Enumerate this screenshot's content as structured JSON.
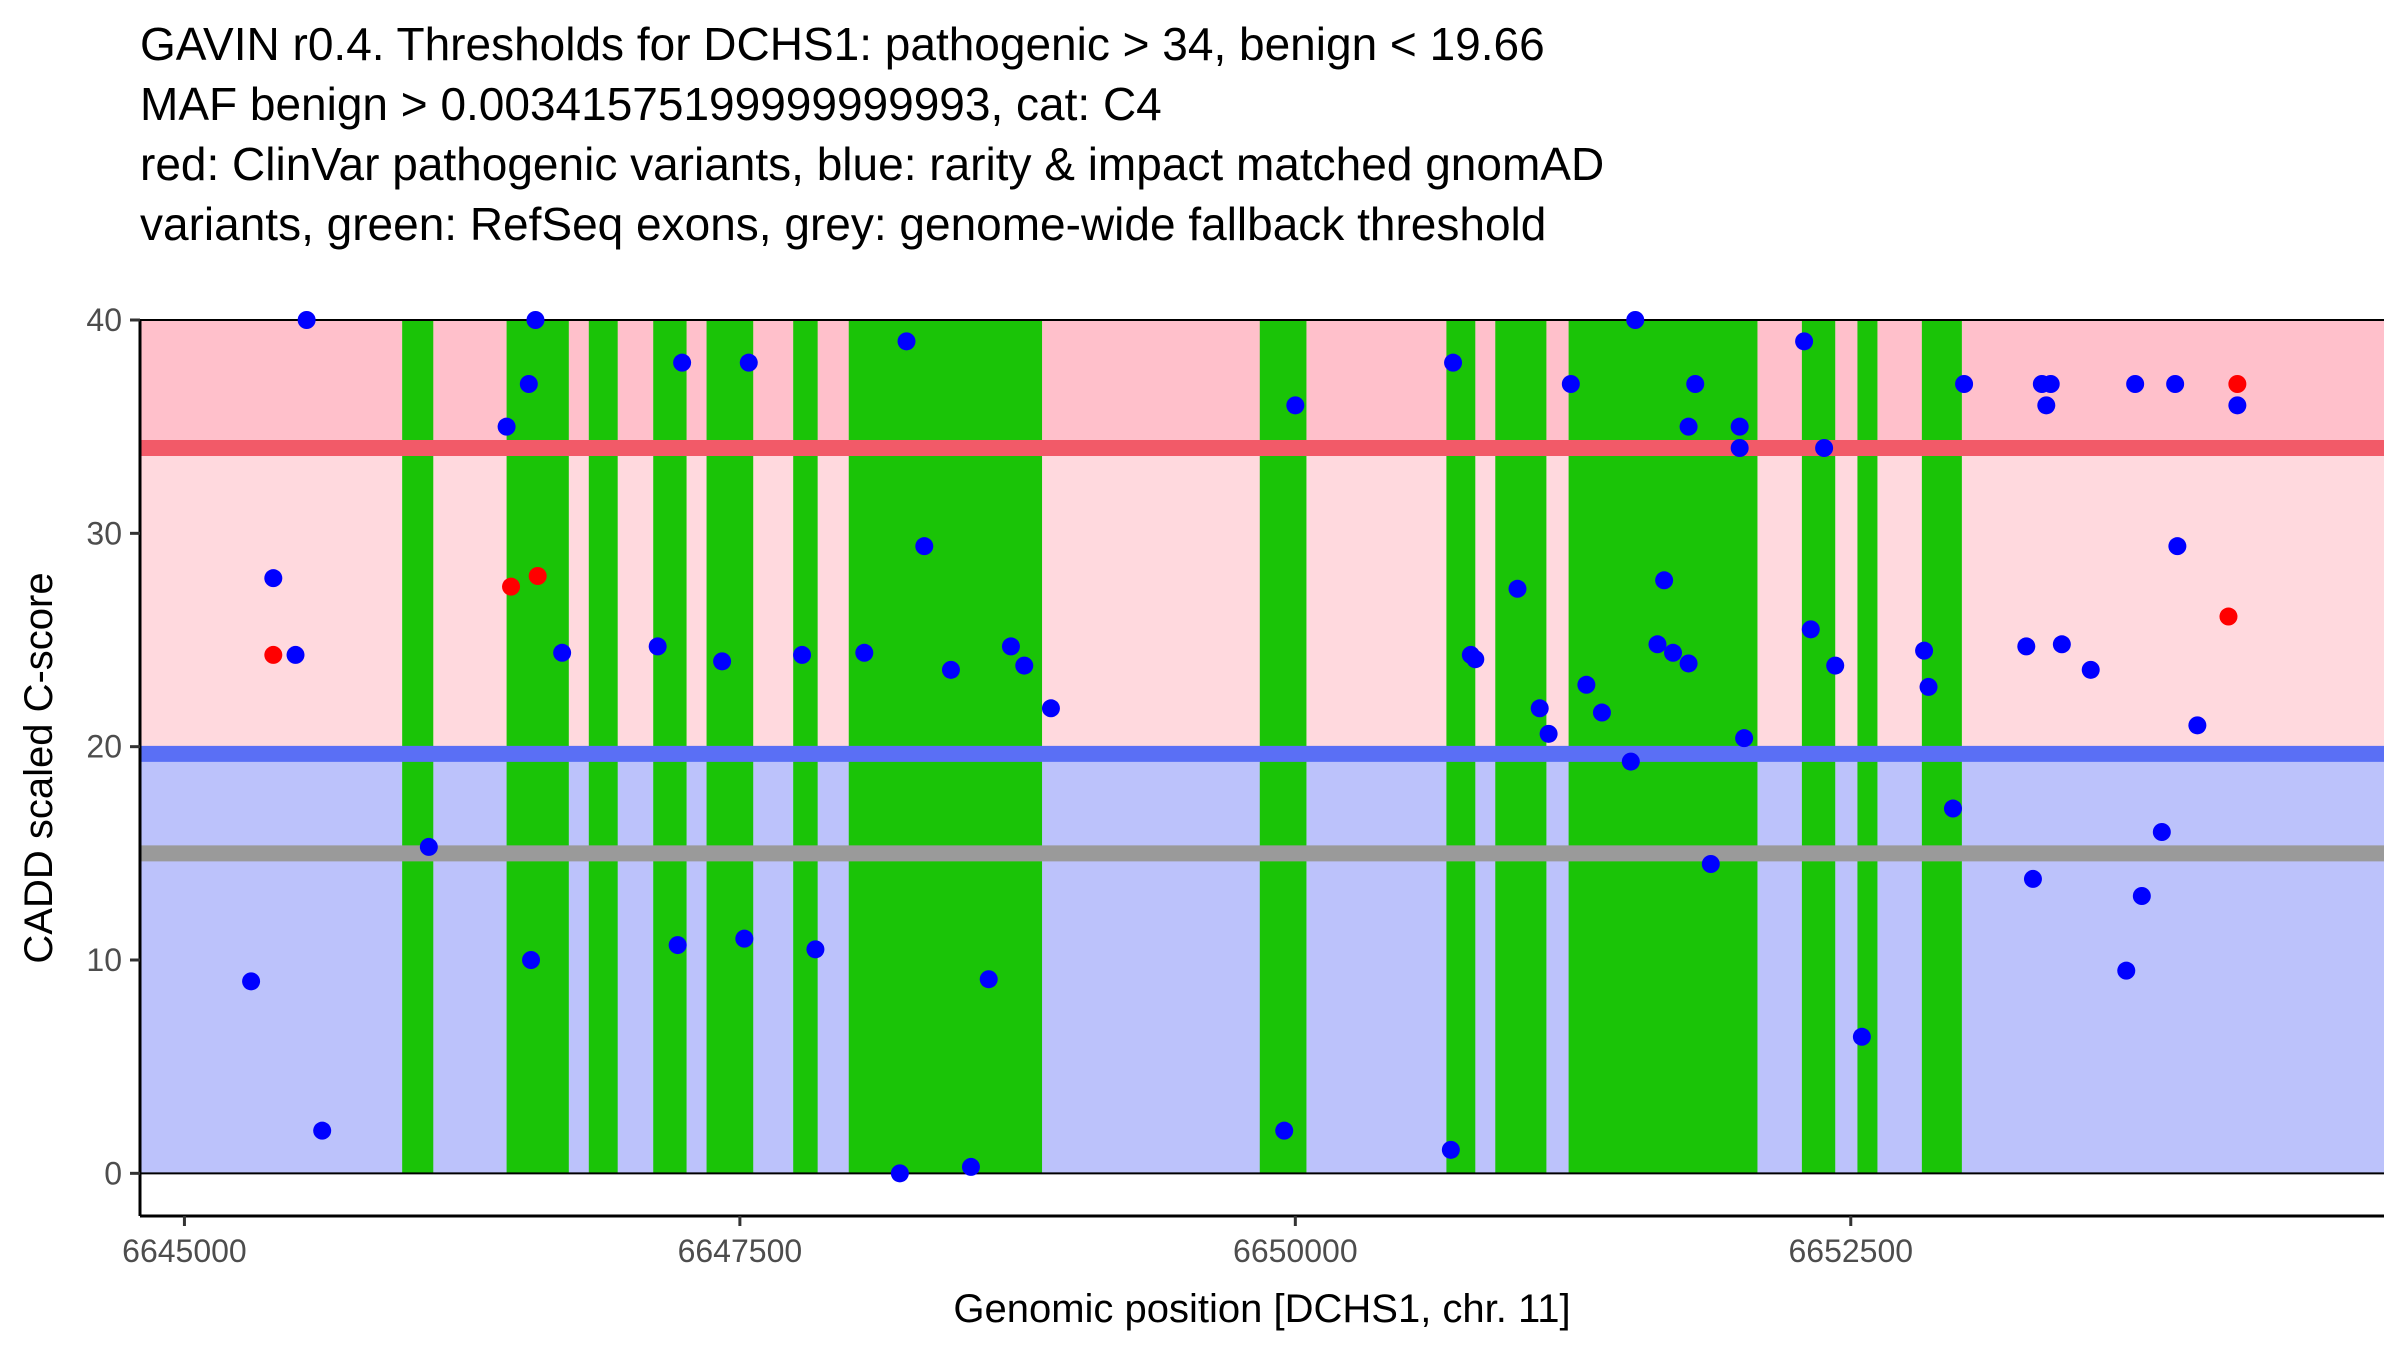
{
  "chart_data": {
    "type": "scatter",
    "title_lines": [
      "GAVIN r0.4. Thresholds for DCHS1: pathogenic > 34, benign < 19.66",
      "MAF benign > 0.00341575199999999993, cat: C4",
      "red: ClinVar pathogenic variants, blue: rarity & impact matched gnomAD",
      "variants, green: RefSeq exons, grey: genome-wide fallback threshold"
    ],
    "xlabel": "Genomic position [DCHS1, chr. 11]",
    "ylabel": "CADD scaled C-score",
    "xlim": [
      6644800,
      6654900
    ],
    "ylim": [
      -2,
      40
    ],
    "x_ticks": [
      6645000,
      6647500,
      6650000,
      6652500
    ],
    "x_tick_labels": [
      "6645000",
      "6647500",
      "6650000",
      "6652500"
    ],
    "y_ticks": [
      0,
      10,
      20,
      30,
      40
    ],
    "y_tick_labels": [
      "0",
      "10",
      "20",
      "30",
      "40"
    ],
    "thresholds": {
      "pathogenic": 34,
      "benign": 19.66,
      "fallback": 15
    },
    "colors": {
      "pathogenic_zone": "#ffc0cb",
      "between_zone": "#ffd9de",
      "benign_zone": "#bcc2fb",
      "pathogenic_line": "#f25a68",
      "benign_line": "#5a6ff5",
      "fallback_line": "#9a9a9a",
      "exon": "#1ac407",
      "clinvar_point": "#ff0000",
      "gnomad_point": "#0000ff"
    },
    "exons": [
      [
        6645980,
        6646120
      ],
      [
        6646450,
        6646730
      ],
      [
        6646820,
        6646950
      ],
      [
        6647110,
        6647260
      ],
      [
        6647350,
        6647560
      ],
      [
        6647740,
        6647850
      ],
      [
        6647990,
        6648860
      ],
      [
        6649840,
        6650050
      ],
      [
        6650680,
        6650810
      ],
      [
        6650900,
        6651130
      ],
      [
        6651230,
        6652080
      ],
      [
        6652280,
        6652430
      ],
      [
        6652530,
        6652620
      ],
      [
        6652820,
        6653000
      ]
    ],
    "series": [
      {
        "name": "ClinVar pathogenic",
        "points": [
          [
            6645400,
            24.3
          ],
          [
            6646470,
            27.5
          ],
          [
            6646590,
            28.0
          ],
          [
            6654200,
            26.1
          ],
          [
            6654240,
            37.0
          ]
        ]
      },
      {
        "name": "gnomAD matched",
        "points": [
          [
            6645300,
            9.0
          ],
          [
            6645400,
            27.9
          ],
          [
            6645500,
            24.3
          ],
          [
            6645550,
            40.0
          ],
          [
            6645620,
            2.0
          ],
          [
            6646100,
            15.3
          ],
          [
            6646450,
            35.0
          ],
          [
            6646550,
            37.0
          ],
          [
            6646560,
            10.0
          ],
          [
            6646580,
            40.0
          ],
          [
            6646700,
            24.4
          ],
          [
            6647130,
            24.7
          ],
          [
            6647220,
            10.7
          ],
          [
            6647240,
            38.0
          ],
          [
            6647420,
            24.0
          ],
          [
            6647520,
            11.0
          ],
          [
            6647540,
            38.0
          ],
          [
            6647780,
            24.3
          ],
          [
            6647840,
            10.5
          ],
          [
            6648060,
            24.4
          ],
          [
            6648220,
            0.0
          ],
          [
            6648250,
            39.0
          ],
          [
            6648330,
            29.4
          ],
          [
            6648450,
            23.6
          ],
          [
            6648540,
            0.3
          ],
          [
            6648620,
            9.1
          ],
          [
            6648720,
            24.7
          ],
          [
            6648780,
            23.8
          ],
          [
            6648900,
            21.8
          ],
          [
            6649950,
            2.0
          ],
          [
            6650000,
            36.0
          ],
          [
            6650700,
            1.1
          ],
          [
            6650710,
            38.0
          ],
          [
            6650790,
            24.3
          ],
          [
            6650810,
            24.1
          ],
          [
            6651000,
            27.4
          ],
          [
            6651100,
            21.8
          ],
          [
            6651140,
            20.6
          ],
          [
            6651240,
            37.0
          ],
          [
            6651310,
            22.9
          ],
          [
            6651380,
            21.6
          ],
          [
            6651510,
            19.3
          ],
          [
            6651530,
            40.0
          ],
          [
            6651630,
            24.8
          ],
          [
            6651660,
            27.8
          ],
          [
            6651700,
            24.4
          ],
          [
            6651770,
            35.0
          ],
          [
            6651770,
            23.9
          ],
          [
            6651800,
            37.0
          ],
          [
            6651870,
            14.5
          ],
          [
            6652000,
            35.0
          ],
          [
            6652000,
            34.0
          ],
          [
            6652020,
            20.4
          ],
          [
            6652290,
            39.0
          ],
          [
            6652320,
            25.5
          ],
          [
            6652380,
            34.0
          ],
          [
            6652430,
            23.8
          ],
          [
            6652550,
            6.4
          ],
          [
            6652830,
            24.5
          ],
          [
            6652850,
            22.8
          ],
          [
            6652960,
            17.1
          ],
          [
            6653010,
            37.0
          ],
          [
            6653290,
            24.7
          ],
          [
            6653320,
            13.8
          ],
          [
            6653360,
            37.0
          ],
          [
            6653380,
            36.0
          ],
          [
            6653400,
            37.0
          ],
          [
            6653450,
            24.8
          ],
          [
            6653580,
            23.6
          ],
          [
            6653740,
            9.5
          ],
          [
            6653780,
            37.0
          ],
          [
            6653810,
            13.0
          ],
          [
            6653900,
            16.0
          ],
          [
            6653960,
            37.0
          ],
          [
            6653970,
            29.4
          ],
          [
            6654060,
            21.0
          ],
          [
            6654240,
            36.0
          ]
        ]
      }
    ]
  }
}
